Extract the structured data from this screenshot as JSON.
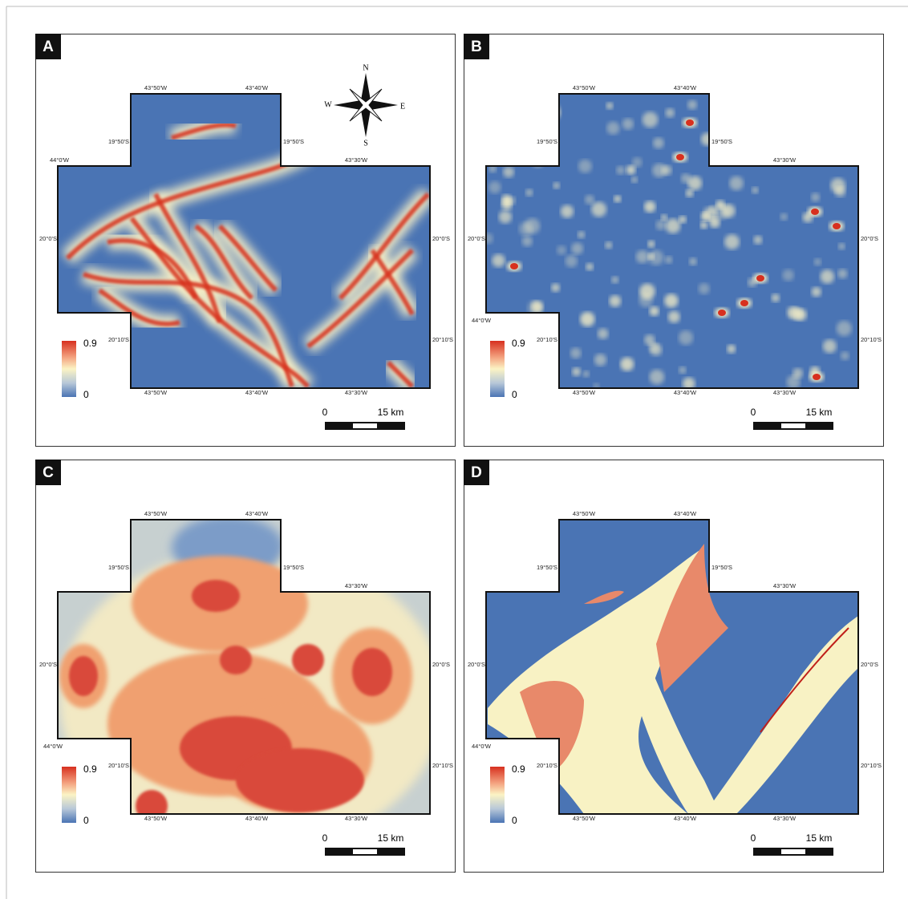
{
  "panels": [
    {
      "label": "A",
      "coords": [
        "43°50'W",
        "43°40'W",
        "19°50'S",
        "19°50'S",
        "44°0'W",
        "43°30'W",
        "20°0'S",
        "20°0'S",
        "20°10'S",
        "20°10'S",
        "43°50'W",
        "43°40'W",
        "43°30'W"
      ],
      "legend": {
        "max": "0.9",
        "min": "0"
      },
      "scale": {
        "start": "0",
        "end": "15 km"
      },
      "compass": {
        "n": "N",
        "s": "S",
        "e": "E",
        "w": "W"
      }
    },
    {
      "label": "B",
      "coords": [
        "43°50'W",
        "43°40'W",
        "19°50'S",
        "19°50'S",
        "44°0'W",
        "43°30'W",
        "20°0'S",
        "20°0'S",
        "20°10'S",
        "20°10'S",
        "43°50'W",
        "43°40'W",
        "43°30'W"
      ],
      "legend": {
        "max": "0.9",
        "min": "0"
      },
      "scale": {
        "start": "0",
        "end": "15 km"
      }
    },
    {
      "label": "C",
      "coords": [
        "43°50'W",
        "43°40'W",
        "19°50'S",
        "19°50'S",
        "44°0'W",
        "43°30'W",
        "20°0'S",
        "20°0'S",
        "20°10'S",
        "20°10'S",
        "43°50'W",
        "43°40'W",
        "43°30'W"
      ],
      "legend": {
        "max": "0.9",
        "min": "0"
      },
      "scale": {
        "start": "0",
        "end": "15 km"
      }
    },
    {
      "label": "D",
      "coords": [
        "43°50'W",
        "43°40'W",
        "19°50'S",
        "19°50'S",
        "44°0'W",
        "43°30'W",
        "20°0'S",
        "20°0'S",
        "20°10'S",
        "20°10'S",
        "43°50'W",
        "43°40'W",
        "43°30'W"
      ],
      "legend": {
        "max": "0.9",
        "min": "0"
      },
      "scale": {
        "start": "0",
        "end": "15 km"
      }
    }
  ]
}
